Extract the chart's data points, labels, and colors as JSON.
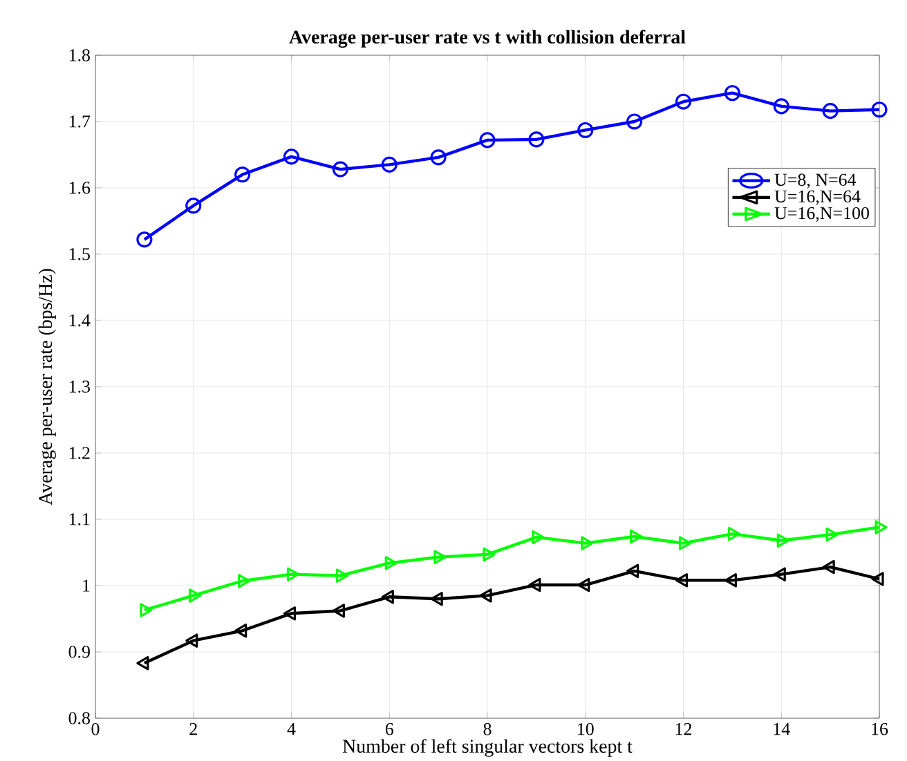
{
  "chart_data": {
    "type": "line",
    "title": "Average per-user rate vs t with collision deferral",
    "xlabel": "Number of left singular vectors kept t",
    "ylabel": "Average per-user rate (bps/Hz)",
    "x": [
      1,
      2,
      3,
      4,
      5,
      6,
      7,
      8,
      9,
      10,
      11,
      12,
      13,
      14,
      15,
      16
    ],
    "series": [
      {
        "name": "U=8, N=64",
        "color": "#0000ff",
        "marker": "circle",
        "values": [
          1.522,
          1.573,
          1.62,
          1.647,
          1.628,
          1.635,
          1.646,
          1.672,
          1.673,
          1.687,
          1.7,
          1.73,
          1.743,
          1.723,
          1.716,
          1.718
        ]
      },
      {
        "name": "U=16,N=64",
        "color": "#000000",
        "marker": "triangle-left",
        "values": [
          0.883,
          0.917,
          0.932,
          0.958,
          0.962,
          0.983,
          0.98,
          0.985,
          1.001,
          1.001,
          1.022,
          1.008,
          1.008,
          1.017,
          1.028,
          1.01
        ]
      },
      {
        "name": "U=16,N=100",
        "color": "#00ff00",
        "marker": "triangle-right",
        "values": [
          0.963,
          0.985,
          1.007,
          1.017,
          1.015,
          1.034,
          1.043,
          1.047,
          1.073,
          1.064,
          1.074,
          1.064,
          1.078,
          1.068,
          1.077,
          1.088
        ]
      }
    ],
    "xlim": [
      0,
      16
    ],
    "xticks": [
      0,
      2,
      4,
      6,
      8,
      10,
      12,
      14,
      16
    ],
    "ylim": [
      0.8,
      1.8
    ],
    "yticks": [
      0.8,
      0.9,
      1,
      1.1,
      1.2,
      1.3,
      1.4,
      1.5,
      1.6,
      1.7,
      1.8
    ],
    "grid": true,
    "legend": "top right",
    "line_style": "solid"
  }
}
